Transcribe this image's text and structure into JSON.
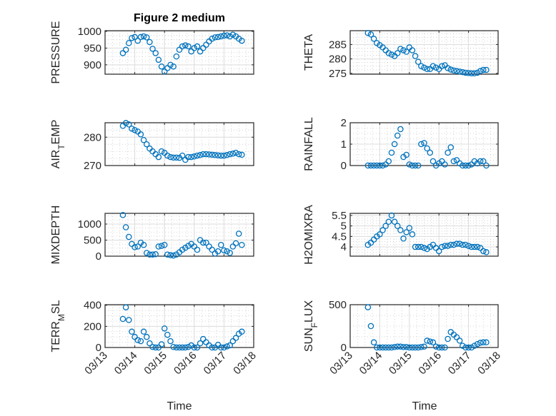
{
  "figure": {
    "title": "Figure 2 medium",
    "xlabel": "Time"
  },
  "colors": {
    "marker": "#0072BD",
    "axis": "#262626",
    "grid": "#dcdcdc",
    "background": "#ffffff"
  },
  "chart_data": [
    {
      "type": "scatter",
      "name": "pressure",
      "ylabel": [
        "PRESSURE",
        "",
        ""
      ],
      "ylim": [
        872,
        1002
      ],
      "yticks": [
        900,
        950,
        1000
      ],
      "xticklabels_shown": false,
      "values": [
        935,
        945,
        965,
        980,
        983,
        972,
        983,
        985,
        982,
        968,
        948,
        935,
        915,
        895,
        880,
        890,
        900,
        895,
        925,
        945,
        955,
        958,
        955,
        940,
        950,
        955,
        940,
        950,
        960,
        970,
        978,
        982,
        983,
        985,
        987,
        988,
        985,
        990,
        985,
        978,
        972
      ]
    },
    {
      "type": "scatter",
      "name": "theta",
      "ylabel": [
        "THETA",
        "",
        ""
      ],
      "ylim": [
        274.7,
        289.8
      ],
      "yticks": [
        275,
        280,
        285
      ],
      "xticklabels_shown": false,
      "values": [
        289,
        288.5,
        287,
        285.5,
        284.8,
        284,
        283,
        282,
        281.5,
        281,
        282,
        283.5,
        283,
        282.5,
        284,
        283,
        281,
        279,
        277.5,
        277,
        276.5,
        276.5,
        277.5,
        277,
        276.5,
        277.5,
        277.8,
        276.8,
        276.3,
        276,
        275.8,
        275.6,
        275.4,
        275.2,
        275.1,
        275,
        275,
        275.2,
        275.8,
        276.2,
        276.2
      ]
    },
    {
      "type": "scatter",
      "name": "air-temp",
      "ylabel": [
        "AIR",
        "T",
        "EMP"
      ],
      "ylim": [
        270,
        285.1
      ],
      "yticks": [
        270,
        280
      ],
      "xticklabels_shown": false,
      "values": [
        284,
        285,
        284.5,
        283,
        282.5,
        282,
        281,
        279,
        277.5,
        276,
        275,
        274,
        273,
        275,
        274.5,
        273.5,
        273,
        272.8,
        272.8,
        272.7,
        273.5,
        272,
        273,
        273,
        273.2,
        273.5,
        273.7,
        274,
        274,
        273.9,
        273.8,
        273.7,
        273.6,
        273.5,
        273.5,
        273.7,
        274,
        274.2,
        274.5,
        274,
        273.8
      ]
    },
    {
      "type": "scatter",
      "name": "rainfall",
      "ylabel": [
        "RAINFALL",
        "",
        ""
      ],
      "ylim": [
        0,
        2
      ],
      "yticks": [
        0,
        1,
        2
      ],
      "xticklabels_shown": false,
      "values": [
        0,
        0,
        0,
        0,
        0,
        0,
        0.05,
        0.2,
        0.6,
        1.0,
        1.4,
        1.7,
        0.4,
        0.5,
        0.05,
        0,
        0,
        0,
        1.0,
        1.05,
        0.8,
        0.6,
        0.2,
        0,
        0.1,
        0.2,
        0.05,
        0.6,
        0.85,
        0.2,
        0.25,
        0.1,
        0,
        0,
        0,
        0.05,
        0.2,
        0.1,
        0.2,
        0.2,
        0
      ]
    },
    {
      "type": "scatter",
      "name": "mixdepth",
      "ylabel": [
        "MIXDEPTH",
        "",
        ""
      ],
      "ylim": [
        0,
        1333
      ],
      "yticks": [
        0,
        500,
        1000
      ],
      "xticklabels_shown": false,
      "values": [
        1280,
        900,
        600,
        380,
        280,
        300,
        420,
        350,
        100,
        50,
        50,
        60,
        300,
        320,
        350,
        50,
        30,
        20,
        50,
        120,
        200,
        260,
        320,
        380,
        300,
        200,
        500,
        420,
        420,
        300,
        200,
        80,
        150,
        350,
        180,
        150,
        100,
        300,
        400,
        700,
        350
      ]
    },
    {
      "type": "scatter",
      "name": "h2omixratio",
      "ylabel": [
        "H2OMIXRA",
        "",
        ""
      ],
      "ylim": [
        3.56,
        5.6
      ],
      "yticks": [
        4,
        4.5,
        5,
        5.5
      ],
      "xticklabels_shown": false,
      "values": [
        4.1,
        4.2,
        4.35,
        4.5,
        4.6,
        4.8,
        5.0,
        5.2,
        5.5,
        5.2,
        5.0,
        4.8,
        4.4,
        4.7,
        4.9,
        4.6,
        4.0,
        4.0,
        4.0,
        3.95,
        3.9,
        4.0,
        4.1,
        3.95,
        3.8,
        4.0,
        4.05,
        4.05,
        4.1,
        4.1,
        4.15,
        4.15,
        4.1,
        4.1,
        4.05,
        4.0,
        4.0,
        4.0,
        3.95,
        3.8,
        3.75
      ]
    },
    {
      "type": "scatter",
      "name": "terr-msl",
      "ylabel": [
        "TERR",
        "M",
        "SL"
      ],
      "ylim": [
        0,
        405
      ],
      "yticks": [
        0,
        200,
        400
      ],
      "xticklabels_shown": true,
      "values": [
        270,
        380,
        260,
        150,
        100,
        70,
        60,
        150,
        100,
        40,
        5,
        0,
        0,
        30,
        180,
        120,
        60,
        5,
        0,
        0,
        0,
        0,
        5,
        20,
        0,
        0,
        40,
        80,
        50,
        20,
        0,
        0,
        25,
        0,
        0,
        10,
        20,
        60,
        90,
        130,
        150
      ]
    },
    {
      "type": "scatter",
      "name": "sun-flux",
      "ylabel": [
        "SUN",
        "F",
        "LUX"
      ],
      "ylim": [
        0,
        500
      ],
      "yticks": [
        0,
        500
      ],
      "xticklabels_shown": true,
      "values": [
        470,
        250,
        60,
        0,
        0,
        0,
        0,
        0,
        0,
        5,
        10,
        10,
        5,
        5,
        0,
        0,
        0,
        0,
        5,
        10,
        80,
        70,
        60,
        10,
        0,
        0,
        0,
        100,
        180,
        150,
        120,
        80,
        20,
        0,
        0,
        0,
        20,
        40,
        55,
        60,
        60
      ]
    }
  ],
  "x_axis": {
    "unit": "days since 03/13 00:00",
    "x_start": 0.6,
    "x_step": 0.1,
    "xlim": [
      0,
      5
    ],
    "xticks": [
      0,
      1,
      2,
      3,
      4,
      5
    ],
    "xticklabels": [
      "03/13",
      "03/14",
      "03/15",
      "03/16",
      "03/17",
      "03/18"
    ]
  }
}
